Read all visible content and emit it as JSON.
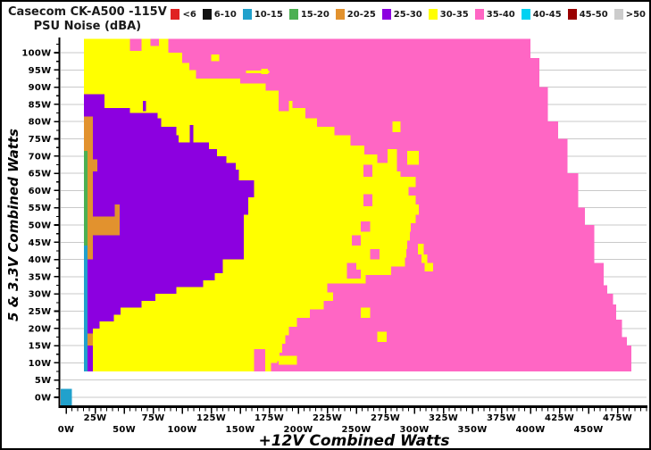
{
  "window": {
    "title": "Casecom CK-A500 -115V",
    "subtitle": "PSU Noise (dBA)"
  },
  "legend": {
    "items": [
      {
        "label": "<6",
        "color": "#e02222"
      },
      {
        "label": "6-10",
        "color": "#111111"
      },
      {
        "label": "10-15",
        "color": "#21a1cc"
      },
      {
        "label": "15-20",
        "color": "#4cb052"
      },
      {
        "label": "20-25",
        "color": "#e2922e"
      },
      {
        "label": "25-30",
        "color": "#8c00e0"
      },
      {
        "label": "30-35",
        "color": "#ffff00"
      },
      {
        "label": "35-40",
        "color": "#ff66c4"
      },
      {
        "label": "40-45",
        "color": "#00d2f2"
      },
      {
        "label": "45-50",
        "color": "#990000"
      },
      {
        "label": ">50",
        "color": "#cccccc"
      }
    ]
  },
  "chart_data": {
    "type": "heatmap",
    "title": "Casecom CK-A500 -115V",
    "subtitle": "PSU Noise (dBA)",
    "xlabel": "+12V Combined Watts",
    "ylabel": "5 & 3.3V Combined Watts",
    "units": "W",
    "xlim": [
      0,
      500
    ],
    "ylim": [
      0,
      104
    ],
    "grid": "horizontal gridlines every 5W",
    "legend_position": "top",
    "x_tick_step": 25,
    "y_tick_step": 5,
    "x_minor_step": 5,
    "y_minor_step": 2.5,
    "x_tick_labels": [
      "0W",
      "25W",
      "50W",
      "75W",
      "100W",
      "125W",
      "150W",
      "175W",
      "200W",
      "225W",
      "250W",
      "275W",
      "300W",
      "325W",
      "350W",
      "375W",
      "400W",
      "425W",
      "450W",
      "475W"
    ],
    "y_tick_labels": [
      "0W",
      "5W",
      "10W",
      "15W",
      "20W",
      "25W",
      "30W",
      "35W",
      "40W",
      "45W",
      "50W",
      "55W",
      "60W",
      "65W",
      "70W",
      "75W",
      "80W",
      "85W",
      "90W",
      "95W",
      "100W"
    ],
    "bins": [
      "<6",
      "6-10",
      "10-15",
      "15-20",
      "20-25",
      "25-30",
      "30-35",
      "35-40",
      "40-45",
      "45-50",
      ">50"
    ],
    "regions": [
      {
        "bin": "35-40",
        "bands": [
          [
            104,
            98.5,
            15.5,
            400
          ],
          [
            98.5,
            90,
            15.5,
            407.5
          ],
          [
            90,
            80,
            15.5,
            415
          ],
          [
            80,
            75,
            15.5,
            424
          ],
          [
            75,
            65,
            15.5,
            432
          ],
          [
            65,
            55,
            15.5,
            441
          ],
          [
            55,
            50,
            15.5,
            447
          ],
          [
            50,
            39,
            15.5,
            455
          ],
          [
            39,
            32.5,
            15.5,
            463
          ],
          [
            32.5,
            30,
            15.5,
            466
          ],
          [
            30,
            27,
            15.5,
            471
          ],
          [
            27,
            22.5,
            15.5,
            474
          ],
          [
            22.5,
            17.5,
            15.5,
            479
          ],
          [
            17.5,
            15,
            15.5,
            483
          ],
          [
            15,
            7.5,
            15.5,
            487
          ]
        ]
      },
      {
        "bin": "30-35",
        "bands": [
          [
            104,
            100,
            15.5,
            88
          ],
          [
            100,
            97,
            15.5,
            100
          ],
          [
            97,
            95,
            15.5,
            106
          ],
          [
            95,
            92.5,
            15.5,
            112
          ],
          [
            92.5,
            91,
            15.5,
            150
          ],
          [
            91,
            89,
            15.5,
            172
          ],
          [
            89,
            86,
            15.5,
            183
          ],
          [
            86,
            84,
            15.5,
            195
          ],
          [
            84,
            81,
            15.5,
            206
          ],
          [
            81,
            78.5,
            15.5,
            216
          ],
          [
            78.5,
            76,
            15.5,
            231
          ],
          [
            76,
            73,
            15.5,
            245
          ],
          [
            73,
            70.5,
            15.5,
            257
          ],
          [
            70.5,
            68,
            15.5,
            268
          ],
          [
            68,
            65.5,
            15.5,
            278
          ],
          [
            65.5,
            64,
            15.5,
            288
          ],
          [
            64,
            61,
            15.5,
            301
          ],
          [
            61,
            58.5,
            15.5,
            295
          ],
          [
            58.5,
            56,
            15.5,
            301
          ],
          [
            56,
            53,
            15.5,
            304
          ],
          [
            53,
            50.5,
            15.5,
            301
          ],
          [
            50.5,
            48,
            15.5,
            297
          ],
          [
            48,
            45.5,
            15.5,
            296
          ],
          [
            45.5,
            43,
            15.5,
            294
          ],
          [
            43,
            40.5,
            15.5,
            293
          ],
          [
            40.5,
            38,
            15.5,
            292
          ],
          [
            38,
            35.5,
            15.5,
            280
          ],
          [
            35.5,
            33,
            15.5,
            258
          ],
          [
            33,
            30.5,
            15.5,
            225
          ],
          [
            30.5,
            28,
            15.5,
            230
          ],
          [
            28,
            25.5,
            15.5,
            222
          ],
          [
            25.5,
            23,
            15.5,
            210
          ],
          [
            23,
            20.5,
            15.5,
            199
          ],
          [
            20.5,
            18,
            15.5,
            192
          ],
          [
            18,
            15.5,
            15.5,
            189
          ],
          [
            15.5,
            13,
            15.5,
            186
          ],
          [
            13,
            10.5,
            15.5,
            184
          ],
          [
            10.5,
            7.5,
            15.5,
            182
          ]
        ]
      },
      {
        "bin": "25-30",
        "bands": [
          [
            88,
            84,
            15.5,
            33
          ],
          [
            84,
            82.5,
            15.5,
            55
          ],
          [
            82.5,
            81,
            15.5,
            79
          ],
          [
            81,
            78.5,
            15.5,
            82
          ],
          [
            78.5,
            76,
            15.5,
            95
          ],
          [
            76,
            74,
            15.5,
            97
          ],
          [
            74,
            72,
            15.5,
            123
          ],
          [
            72,
            70,
            15.5,
            130
          ],
          [
            70,
            68,
            15.5,
            138
          ],
          [
            68,
            66,
            15.5,
            146
          ],
          [
            66,
            63,
            15.5,
            149
          ],
          [
            63,
            58,
            15.5,
            162
          ],
          [
            58,
            53,
            15.5,
            157
          ],
          [
            53,
            40,
            15.5,
            153
          ],
          [
            40,
            36,
            15.5,
            135
          ],
          [
            36,
            34,
            15.5,
            128
          ],
          [
            34,
            32,
            15.5,
            118
          ],
          [
            32,
            30,
            15.5,
            95
          ],
          [
            30,
            28,
            15.5,
            77
          ],
          [
            28,
            26,
            15.5,
            65
          ],
          [
            26,
            24,
            15.5,
            47
          ],
          [
            24,
            22,
            15.5,
            41
          ],
          [
            22,
            20,
            15.5,
            29
          ],
          [
            20,
            7.5,
            18.5,
            23
          ]
        ]
      },
      {
        "bin": "20-25",
        "bands": [
          [
            81.5,
            71.5,
            15.5,
            18.5
          ],
          [
            81.5,
            40,
            18.5,
            23
          ],
          [
            69,
            65.5,
            23,
            27
          ],
          [
            52.5,
            47,
            16,
            46
          ],
          [
            56,
            52.5,
            42,
            46
          ],
          [
            18.5,
            15,
            18.5,
            23
          ]
        ]
      },
      {
        "bin": "15-20",
        "bands": [
          [
            71.5,
            44,
            15.5,
            18.5
          ]
        ]
      },
      {
        "bin": "10-15",
        "bands": [
          [
            44,
            7.5,
            15.5,
            18.5
          ]
        ]
      }
    ],
    "speckles": [
      [
        "35-40",
        55,
        104,
        65,
        100.5
      ],
      [
        "35-40",
        72.5,
        104,
        80,
        102
      ],
      [
        "35-40",
        183,
        86,
        192,
        83
      ],
      [
        "35-40",
        256,
        67.5,
        264,
        64
      ],
      [
        "35-40",
        256,
        59,
        264,
        55.5
      ],
      [
        "35-40",
        254,
        51,
        262,
        48
      ],
      [
        "35-40",
        246,
        47,
        254,
        44
      ],
      [
        "35-40",
        262,
        43,
        270,
        40
      ],
      [
        "35-40",
        242,
        39,
        250,
        36.5
      ],
      [
        "35-40",
        242,
        37,
        254,
        34.5
      ],
      [
        "35-40",
        162,
        14,
        171.5,
        7.5
      ],
      [
        "35-40",
        176.5,
        10,
        183,
        7.5
      ],
      [
        "35-40",
        225,
        12.5,
        235,
        10
      ],
      [
        "30-35",
        281,
        80,
        288,
        77
      ],
      [
        "30-35",
        294,
        71.5,
        304,
        67.5
      ],
      [
        "30-35",
        277,
        72,
        285,
        65
      ],
      [
        "30-35",
        303,
        44.5,
        308,
        41.5
      ],
      [
        "30-35",
        306,
        41.5,
        311,
        39
      ],
      [
        "30-35",
        309,
        39,
        316,
        36.5
      ],
      [
        "30-35",
        254,
        26,
        262,
        23
      ],
      [
        "30-35",
        268,
        19,
        276,
        16
      ],
      [
        "30-35",
        155,
        94.8,
        175,
        94
      ],
      [
        "30-35",
        168,
        95.3,
        174,
        93.8
      ],
      [
        "30-35",
        125,
        99.5,
        132,
        97.5
      ],
      [
        "30-35",
        183,
        12,
        199,
        9.5
      ],
      [
        "25-30",
        106.5,
        79,
        109.5,
        74
      ],
      [
        "25-30",
        66,
        86,
        69,
        83
      ]
    ],
    "origin_cell": {
      "bin": "10-15",
      "x": 0,
      "y": 0
    }
  },
  "colors": {
    "background": "#ffffff",
    "gridline": "#c9c9c9",
    "axis": "#000000",
    "text": "#1a1a1a"
  }
}
